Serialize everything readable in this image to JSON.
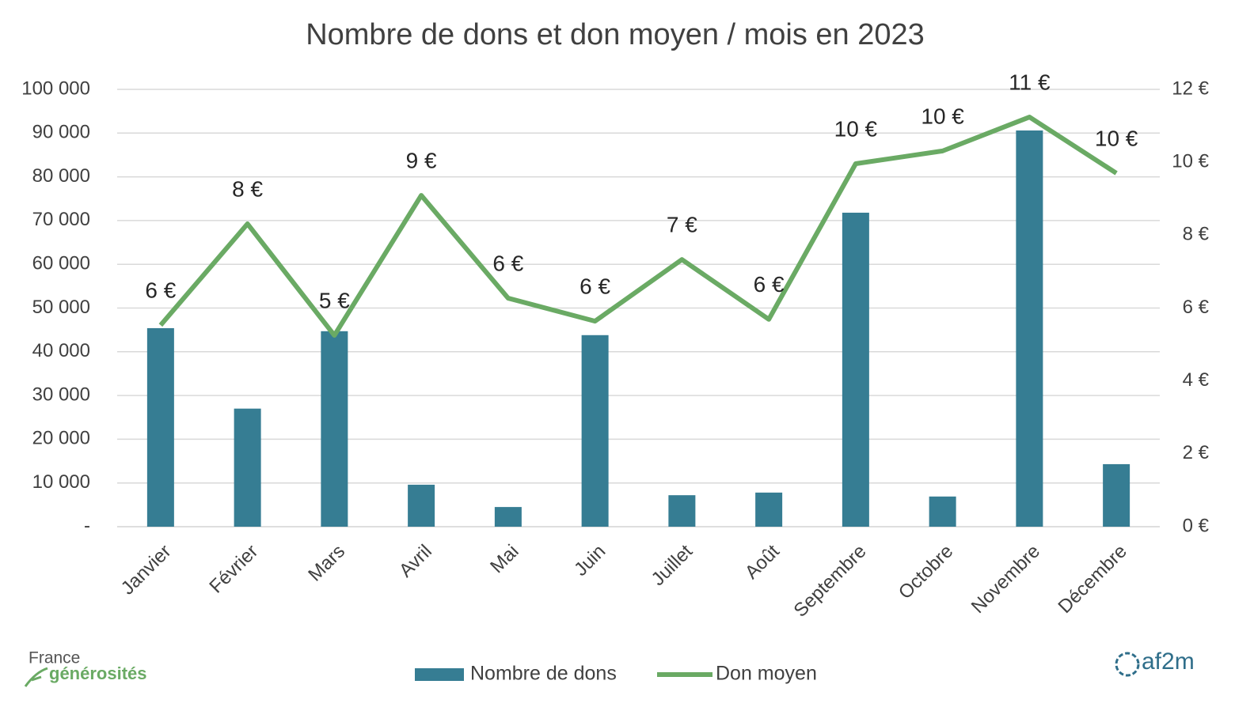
{
  "chart_data": {
    "type": "bar-line",
    "title": "Nombre de dons et don moyen / mois en 2023",
    "categories": [
      "Janvier",
      "Février",
      "Mars",
      "Avril",
      "Mai",
      "Juin",
      "Juillet",
      "Août",
      "Septembre",
      "Octobre",
      "Novembre",
      "Décembre"
    ],
    "series": [
      {
        "name": "Nombre de dons",
        "type": "bar",
        "color": "#367d93",
        "axis": "y",
        "values": [
          45400,
          27000,
          44700,
          9600,
          4500,
          43800,
          7200,
          7800,
          71800,
          6900,
          90600,
          14300
        ]
      },
      {
        "name": "Don moyen",
        "type": "line",
        "color": "#6aaa64",
        "axis": "y2",
        "values": [
          5.53,
          8.31,
          5.25,
          9.09,
          6.27,
          5.64,
          7.33,
          5.69,
          9.96,
          10.31,
          11.24,
          9.7
        ],
        "value_labels": [
          "6 €",
          "8 €",
          "5 €",
          "9 €",
          "6 €",
          "6 €",
          "7 €",
          "6 €",
          "10 €",
          "10 €",
          "11 €",
          "10 €"
        ]
      }
    ],
    "ylim": [
      0,
      100000
    ],
    "yticks": [
      {
        "value": 0,
        "label": "-"
      },
      {
        "value": 10000,
        "label": "10 000"
      },
      {
        "value": 20000,
        "label": "20 000"
      },
      {
        "value": 30000,
        "label": "30 000"
      },
      {
        "value": 40000,
        "label": "40 000"
      },
      {
        "value": 50000,
        "label": "50 000"
      },
      {
        "value": 60000,
        "label": "60 000"
      },
      {
        "value": 70000,
        "label": "70 000"
      },
      {
        "value": 80000,
        "label": "80 000"
      },
      {
        "value": 90000,
        "label": "90 000"
      },
      {
        "value": 100000,
        "label": "100 000"
      }
    ],
    "y2lim": [
      0,
      12
    ],
    "y2ticks": [
      {
        "value": 0,
        "label": "0 €"
      },
      {
        "value": 2,
        "label": "2 €"
      },
      {
        "value": 4,
        "label": "4 €"
      },
      {
        "value": 6,
        "label": "6 €"
      },
      {
        "value": 8,
        "label": "8 €"
      },
      {
        "value": 10,
        "label": "10 €"
      },
      {
        "value": 12,
        "label": "12 €"
      }
    ],
    "grid": true,
    "legend": "bottom"
  },
  "logos": {
    "left_top": "France",
    "left_bottom": "générosités",
    "right": "af2m"
  }
}
